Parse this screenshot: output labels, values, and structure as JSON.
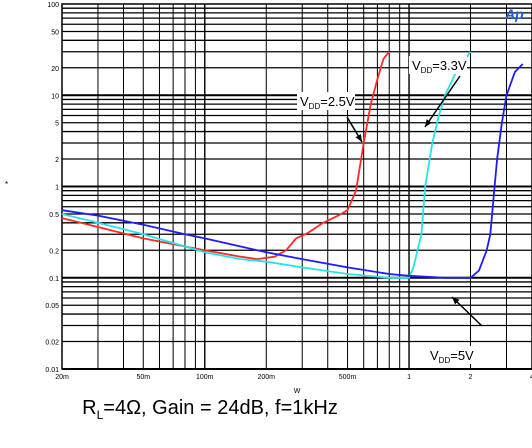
{
  "brand_text": "Ap",
  "caption": {
    "r_prefix": "R",
    "r_sub": "L",
    "rest": "=4Ω, Gain = 24dB, f=1kHz"
  },
  "y_axis_mark": "*",
  "chart_data": {
    "type": "line",
    "title": "",
    "xlabel": "W",
    "ylabel": "",
    "xscale": "log",
    "yscale": "log",
    "xlim": [
      0.02,
      4
    ],
    "ylim": [
      0.01,
      100
    ],
    "grid": true,
    "x_ticks": [
      {
        "v": 0.02,
        "label": "20m"
      },
      {
        "v": 0.05,
        "label": "50m"
      },
      {
        "v": 0.1,
        "label": "100m"
      },
      {
        "v": 0.2,
        "label": "200m"
      },
      {
        "v": 0.5,
        "label": "500m"
      },
      {
        "v": 1,
        "label": "1"
      },
      {
        "v": 2,
        "label": "2"
      },
      {
        "v": 4,
        "label": "4"
      }
    ],
    "y_ticks": [
      {
        "v": 100,
        "label": "100"
      },
      {
        "v": 50,
        "label": "50"
      },
      {
        "v": 20,
        "label": "20"
      },
      {
        "v": 10,
        "label": "10"
      },
      {
        "v": 5,
        "label": "5"
      },
      {
        "v": 2,
        "label": "2"
      },
      {
        "v": 1,
        "label": "1"
      },
      {
        "v": 0.5,
        "label": "0.5"
      },
      {
        "v": 0.2,
        "label": "0.2"
      },
      {
        "v": 0.1,
        "label": "0.1"
      },
      {
        "v": 0.05,
        "label": "0.05"
      },
      {
        "v": 0.02,
        "label": "0.02"
      },
      {
        "v": 0.01,
        "label": "0.01"
      }
    ],
    "series": [
      {
        "name": "V_DD=2.5V",
        "label_main": "V",
        "label_sub": "DD",
        "label_rest": "=2.5V",
        "color": "#ff2a2a",
        "points": [
          [
            0.02,
            0.45
          ],
          [
            0.03,
            0.36
          ],
          [
            0.05,
            0.27
          ],
          [
            0.08,
            0.22
          ],
          [
            0.1,
            0.2
          ],
          [
            0.15,
            0.17
          ],
          [
            0.18,
            0.16
          ],
          [
            0.22,
            0.17
          ],
          [
            0.25,
            0.2
          ],
          [
            0.28,
            0.27
          ],
          [
            0.32,
            0.31
          ],
          [
            0.38,
            0.4
          ],
          [
            0.45,
            0.48
          ],
          [
            0.5,
            0.55
          ],
          [
            0.55,
            0.9
          ],
          [
            0.6,
            3
          ],
          [
            0.65,
            8
          ],
          [
            0.7,
            15
          ],
          [
            0.75,
            25
          ],
          [
            0.8,
            30
          ]
        ]
      },
      {
        "name": "V_DD=3.3V",
        "label_main": "V",
        "label_sub": "DD",
        "label_rest": "=3.3V",
        "color": "#22e6e6",
        "points": [
          [
            0.02,
            0.5
          ],
          [
            0.03,
            0.4
          ],
          [
            0.05,
            0.3
          ],
          [
            0.08,
            0.22
          ],
          [
            0.1,
            0.19
          ],
          [
            0.15,
            0.16
          ],
          [
            0.2,
            0.15
          ],
          [
            0.3,
            0.13
          ],
          [
            0.5,
            0.11
          ],
          [
            0.8,
            0.1
          ],
          [
            1.0,
            0.1
          ],
          [
            1.05,
            0.13
          ],
          [
            1.1,
            0.2
          ],
          [
            1.15,
            0.3
          ],
          [
            1.2,
            1
          ],
          [
            1.3,
            3
          ],
          [
            1.4,
            6
          ],
          [
            1.5,
            10
          ],
          [
            1.7,
            18
          ],
          [
            2.0,
            30
          ]
        ]
      },
      {
        "name": "V_DD=5V",
        "label_main": "V",
        "label_sub": "DD",
        "label_rest": "=5V",
        "color": "#1c1cff",
        "points": [
          [
            0.02,
            0.55
          ],
          [
            0.03,
            0.48
          ],
          [
            0.05,
            0.38
          ],
          [
            0.08,
            0.3
          ],
          [
            0.1,
            0.27
          ],
          [
            0.15,
            0.22
          ],
          [
            0.2,
            0.19
          ],
          [
            0.3,
            0.16
          ],
          [
            0.5,
            0.13
          ],
          [
            0.8,
            0.11
          ],
          [
            1.0,
            0.105
          ],
          [
            1.5,
            0.1
          ],
          [
            2.0,
            0.1
          ],
          [
            2.2,
            0.12
          ],
          [
            2.4,
            0.2
          ],
          [
            2.5,
            0.3
          ],
          [
            2.6,
            0.8
          ],
          [
            2.7,
            2
          ],
          [
            2.85,
            5
          ],
          [
            3.0,
            10
          ],
          [
            3.3,
            18
          ],
          [
            3.6,
            22
          ]
        ]
      }
    ]
  }
}
